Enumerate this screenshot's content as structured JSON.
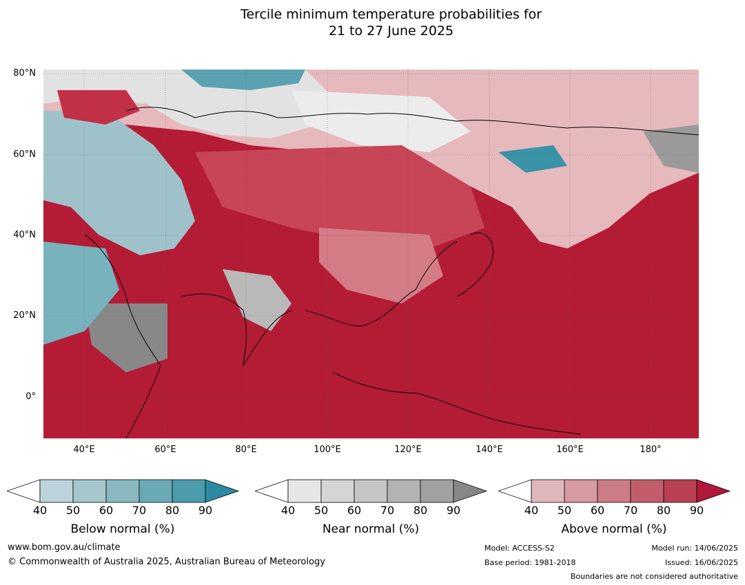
{
  "title": {
    "line1": "Tercile minimum temperature probabilities for",
    "line2": "21 to 27 June 2025"
  },
  "map": {
    "lat_labels": [
      "80°N",
      "60°N",
      "40°N",
      "20°N",
      "0°"
    ],
    "lon_labels": [
      "40°E",
      "60°E",
      "80°E",
      "100°E",
      "120°E",
      "140°E",
      "160°E",
      "180°"
    ],
    "base_color": "#b41c36"
  },
  "legends": [
    {
      "title": "Below normal (%)",
      "ticks": [
        "40",
        "50",
        "60",
        "70",
        "80",
        "90"
      ],
      "colors": [
        "#ffffff",
        "#bdd3db",
        "#a5c6cd",
        "#89b8c1",
        "#6aaab7",
        "#4b9bac",
        "#2b8aa0"
      ]
    },
    {
      "title": "Near normal (%)",
      "ticks": [
        "40",
        "50",
        "60",
        "70",
        "80",
        "90"
      ],
      "colors": [
        "#ffffff",
        "#e6e6e6",
        "#d5d5d5",
        "#c5c5c5",
        "#b3b3b3",
        "#a1a1a1",
        "#878787"
      ]
    },
    {
      "title": "Above normal (%)",
      "ticks": [
        "40",
        "50",
        "60",
        "70",
        "80",
        "90"
      ],
      "colors": [
        "#ffffff",
        "#e0b8bc",
        "#d69aa0",
        "#cc7c85",
        "#c25e6b",
        "#b84052",
        "#b1183a"
      ]
    }
  ],
  "footer": {
    "website": "www.bom.gov.au/climate",
    "copyright": "© Commonwealth of Australia 2025, Australian Bureau of Meteorology",
    "model": "Model: ACCESS-S2",
    "base_period": "Base period: 1981-2018",
    "model_run": "Model run: 14/06/2025",
    "issued": "Issued: 16/06/2025",
    "boundaries": "Boundaries are not considered authoritative"
  }
}
